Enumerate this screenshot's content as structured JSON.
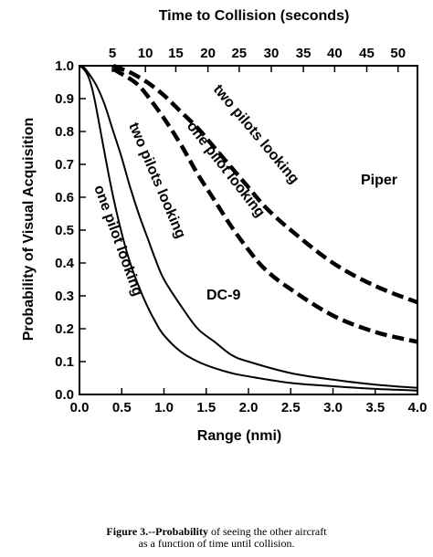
{
  "chart_data": {
    "type": "line",
    "title": "",
    "xlabel": "Range (nmi)",
    "ylabel": "Probability of Visual Acquisition",
    "top_axis_label": "Time to Collision (seconds)",
    "xlim": [
      0,
      4.0
    ],
    "ylim": [
      0,
      1.0
    ],
    "x_ticks": [
      "0.0",
      "0.5",
      "1.0",
      "1.5",
      "2.0",
      "2.5",
      "3.0",
      "3.5",
      "4.0"
    ],
    "y_ticks": [
      "0.0",
      "0.1",
      "0.2",
      "0.3",
      "0.4",
      "0.5",
      "0.6",
      "0.7",
      "0.8",
      "0.9",
      "1.0"
    ],
    "top_ticks": [
      {
        "label": "5",
        "x": 0.39
      },
      {
        "label": "10",
        "x": 0.78
      },
      {
        "label": "15",
        "x": 1.14
      },
      {
        "label": "20",
        "x": 1.52
      },
      {
        "label": "25",
        "x": 1.89
      },
      {
        "label": "30",
        "x": 2.27
      },
      {
        "label": "35",
        "x": 2.65
      },
      {
        "label": "40",
        "x": 3.02
      },
      {
        "label": "45",
        "x": 3.4
      },
      {
        "label": "50",
        "x": 3.77
      }
    ],
    "grid": false,
    "annotations": [
      "Piper",
      "DC-9"
    ],
    "series": [
      {
        "name": "one pilot looking",
        "aircraft": "DC-9",
        "style": "solid",
        "x": [
          0,
          0.05,
          0.1,
          0.15,
          0.2,
          0.3,
          0.4,
          0.5,
          0.6,
          0.7,
          0.8,
          0.9,
          1.0,
          1.2,
          1.4,
          1.6,
          1.8,
          2.0,
          2.5,
          3.0,
          3.5,
          4.0
        ],
        "y": [
          1.0,
          0.99,
          0.97,
          0.93,
          0.87,
          0.73,
          0.6,
          0.49,
          0.4,
          0.33,
          0.27,
          0.22,
          0.18,
          0.13,
          0.1,
          0.08,
          0.065,
          0.055,
          0.035,
          0.025,
          0.017,
          0.012
        ]
      },
      {
        "name": "two pilots looking",
        "aircraft": "DC-9",
        "style": "solid",
        "x": [
          0,
          0.05,
          0.1,
          0.2,
          0.3,
          0.4,
          0.5,
          0.6,
          0.7,
          0.8,
          0.9,
          1.0,
          1.2,
          1.4,
          1.6,
          1.8,
          2.0,
          2.5,
          3.0,
          3.5,
          4.0
        ],
        "y": [
          1.0,
          0.995,
          0.98,
          0.94,
          0.88,
          0.8,
          0.72,
          0.63,
          0.55,
          0.48,
          0.41,
          0.35,
          0.27,
          0.2,
          0.16,
          0.12,
          0.1,
          0.065,
          0.045,
          0.03,
          0.02
        ]
      },
      {
        "name": "one pilot looking",
        "aircraft": "Piper",
        "style": "dashed",
        "x": [
          0.4,
          0.5,
          0.6,
          0.7,
          0.8,
          1.0,
          1.2,
          1.4,
          1.6,
          1.8,
          2.0,
          2.2,
          2.5,
          3.0,
          3.5,
          4.0
        ],
        "y": [
          0.99,
          0.975,
          0.96,
          0.94,
          0.91,
          0.84,
          0.76,
          0.67,
          0.59,
          0.51,
          0.44,
          0.38,
          0.32,
          0.24,
          0.19,
          0.16
        ]
      },
      {
        "name": "two pilots looking",
        "aircraft": "Piper",
        "style": "dashed",
        "x": [
          0.4,
          0.5,
          0.6,
          0.8,
          1.0,
          1.2,
          1.4,
          1.6,
          1.8,
          2.0,
          2.2,
          2.5,
          3.0,
          3.5,
          4.0
        ],
        "y": [
          1.0,
          0.99,
          0.98,
          0.95,
          0.91,
          0.86,
          0.81,
          0.75,
          0.69,
          0.63,
          0.57,
          0.5,
          0.4,
          0.33,
          0.28
        ]
      }
    ]
  },
  "labels": {
    "piper": "Piper",
    "dc9": "DC-9",
    "curve_piper_two": "two pilots looking",
    "curve_piper_one": "one pilot looking",
    "curve_dc9_two": "two pilots looking",
    "curve_dc9_one": "one pilot looking"
  },
  "caption": {
    "figure": "Figure 3.--Probability",
    "line1_rest": " of seeing the other aircraft",
    "line2": "as a function of time until collision."
  }
}
